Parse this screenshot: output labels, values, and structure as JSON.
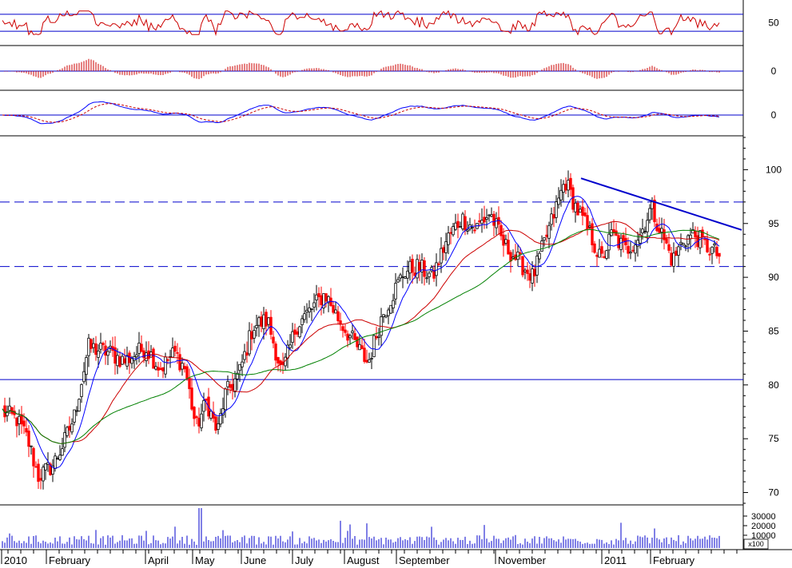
{
  "chart_data": {
    "type": "candlestick",
    "date_range": [
      "2010-01",
      "2011-03"
    ],
    "colors": {
      "up_candle": "#000000",
      "down_candle": "#ff0000",
      "ma_fast": "#0000ff",
      "ma_mid": "#cc0000",
      "ma_slow": "#008000",
      "oscillator": "#cc0000",
      "macd_line": "#0000ff",
      "signal_line": "#cc0000",
      "reference_lines": "#0000cc",
      "volume": "#0000cc"
    },
    "x_axis": {
      "labels": [
        "2010",
        "February",
        "April",
        "May",
        "June",
        "July",
        "August",
        "September",
        "November",
        "2011",
        "February"
      ]
    },
    "price_panel": {
      "ylim": [
        69,
        103
      ],
      "ticks": [
        70,
        75,
        80,
        85,
        90,
        95,
        100
      ],
      "horizontal_lines": [
        {
          "value": 97,
          "style": "dashed"
        },
        {
          "value": 91,
          "style": "dashed"
        },
        {
          "value": 80.5,
          "style": "solid"
        }
      ],
      "trendline": {
        "start": {
          "date": "2010-11-30",
          "value": 99.2
        },
        "end": {
          "date": "2011-03-10",
          "value": 94.4
        }
      },
      "anchors": [
        {
          "t": 0.0,
          "v": 77.5
        },
        {
          "t": 0.02,
          "v": 76.8
        },
        {
          "t": 0.035,
          "v": 75.0
        },
        {
          "t": 0.05,
          "v": 71.5
        },
        {
          "t": 0.07,
          "v": 72.5
        },
        {
          "t": 0.085,
          "v": 74.5
        },
        {
          "t": 0.1,
          "v": 77.0
        },
        {
          "t": 0.12,
          "v": 83.5
        },
        {
          "t": 0.15,
          "v": 83.0
        },
        {
          "t": 0.17,
          "v": 82.2
        },
        {
          "t": 0.2,
          "v": 83.5
        },
        {
          "t": 0.22,
          "v": 81.5
        },
        {
          "t": 0.24,
          "v": 83.0
        },
        {
          "t": 0.255,
          "v": 81.5
        },
        {
          "t": 0.27,
          "v": 76.0
        },
        {
          "t": 0.285,
          "v": 78.5
        },
        {
          "t": 0.3,
          "v": 75.5
        },
        {
          "t": 0.31,
          "v": 79.0
        },
        {
          "t": 0.33,
          "v": 81.0
        },
        {
          "t": 0.35,
          "v": 85.5
        },
        {
          "t": 0.37,
          "v": 86.0
        },
        {
          "t": 0.39,
          "v": 81.0
        },
        {
          "t": 0.41,
          "v": 85.5
        },
        {
          "t": 0.43,
          "v": 87.0
        },
        {
          "t": 0.45,
          "v": 88.5
        },
        {
          "t": 0.47,
          "v": 86.0
        },
        {
          "t": 0.49,
          "v": 84.0
        },
        {
          "t": 0.51,
          "v": 82.0
        },
        {
          "t": 0.53,
          "v": 86.5
        },
        {
          "t": 0.56,
          "v": 90.5
        },
        {
          "t": 0.58,
          "v": 91.0
        },
        {
          "t": 0.6,
          "v": 90.0
        },
        {
          "t": 0.62,
          "v": 93.5
        },
        {
          "t": 0.64,
          "v": 95.5
        },
        {
          "t": 0.66,
          "v": 94.5
        },
        {
          "t": 0.68,
          "v": 96.0
        },
        {
          "t": 0.7,
          "v": 93.0
        },
        {
          "t": 0.72,
          "v": 91.5
        },
        {
          "t": 0.74,
          "v": 90.0
        },
        {
          "t": 0.76,
          "v": 94.0
        },
        {
          "t": 0.785,
          "v": 99.0
        },
        {
          "t": 0.8,
          "v": 96.5
        },
        {
          "t": 0.82,
          "v": 94.0
        },
        {
          "t": 0.835,
          "v": 91.5
        },
        {
          "t": 0.85,
          "v": 94.0
        },
        {
          "t": 0.87,
          "v": 92.5
        },
        {
          "t": 0.89,
          "v": 94.0
        },
        {
          "t": 0.905,
          "v": 96.5
        },
        {
          "t": 0.92,
          "v": 94.0
        },
        {
          "t": 0.935,
          "v": 91.5
        },
        {
          "t": 0.95,
          "v": 93.5
        },
        {
          "t": 0.965,
          "v": 94.0
        },
        {
          "t": 0.98,
          "v": 93.0
        },
        {
          "t": 1.0,
          "v": 92.0
        }
      ]
    },
    "oscillator_panel": {
      "ylim": [
        0,
        100
      ],
      "ticks": [
        50
      ],
      "lines": [
        70,
        30
      ]
    },
    "histogram_panel": {
      "ticks": [
        0
      ]
    },
    "macd_panel": {
      "ticks": [
        0
      ]
    },
    "volume_panel": {
      "ticks": [
        "30000",
        "20000",
        "10000"
      ],
      "unit_label": "x100"
    }
  }
}
